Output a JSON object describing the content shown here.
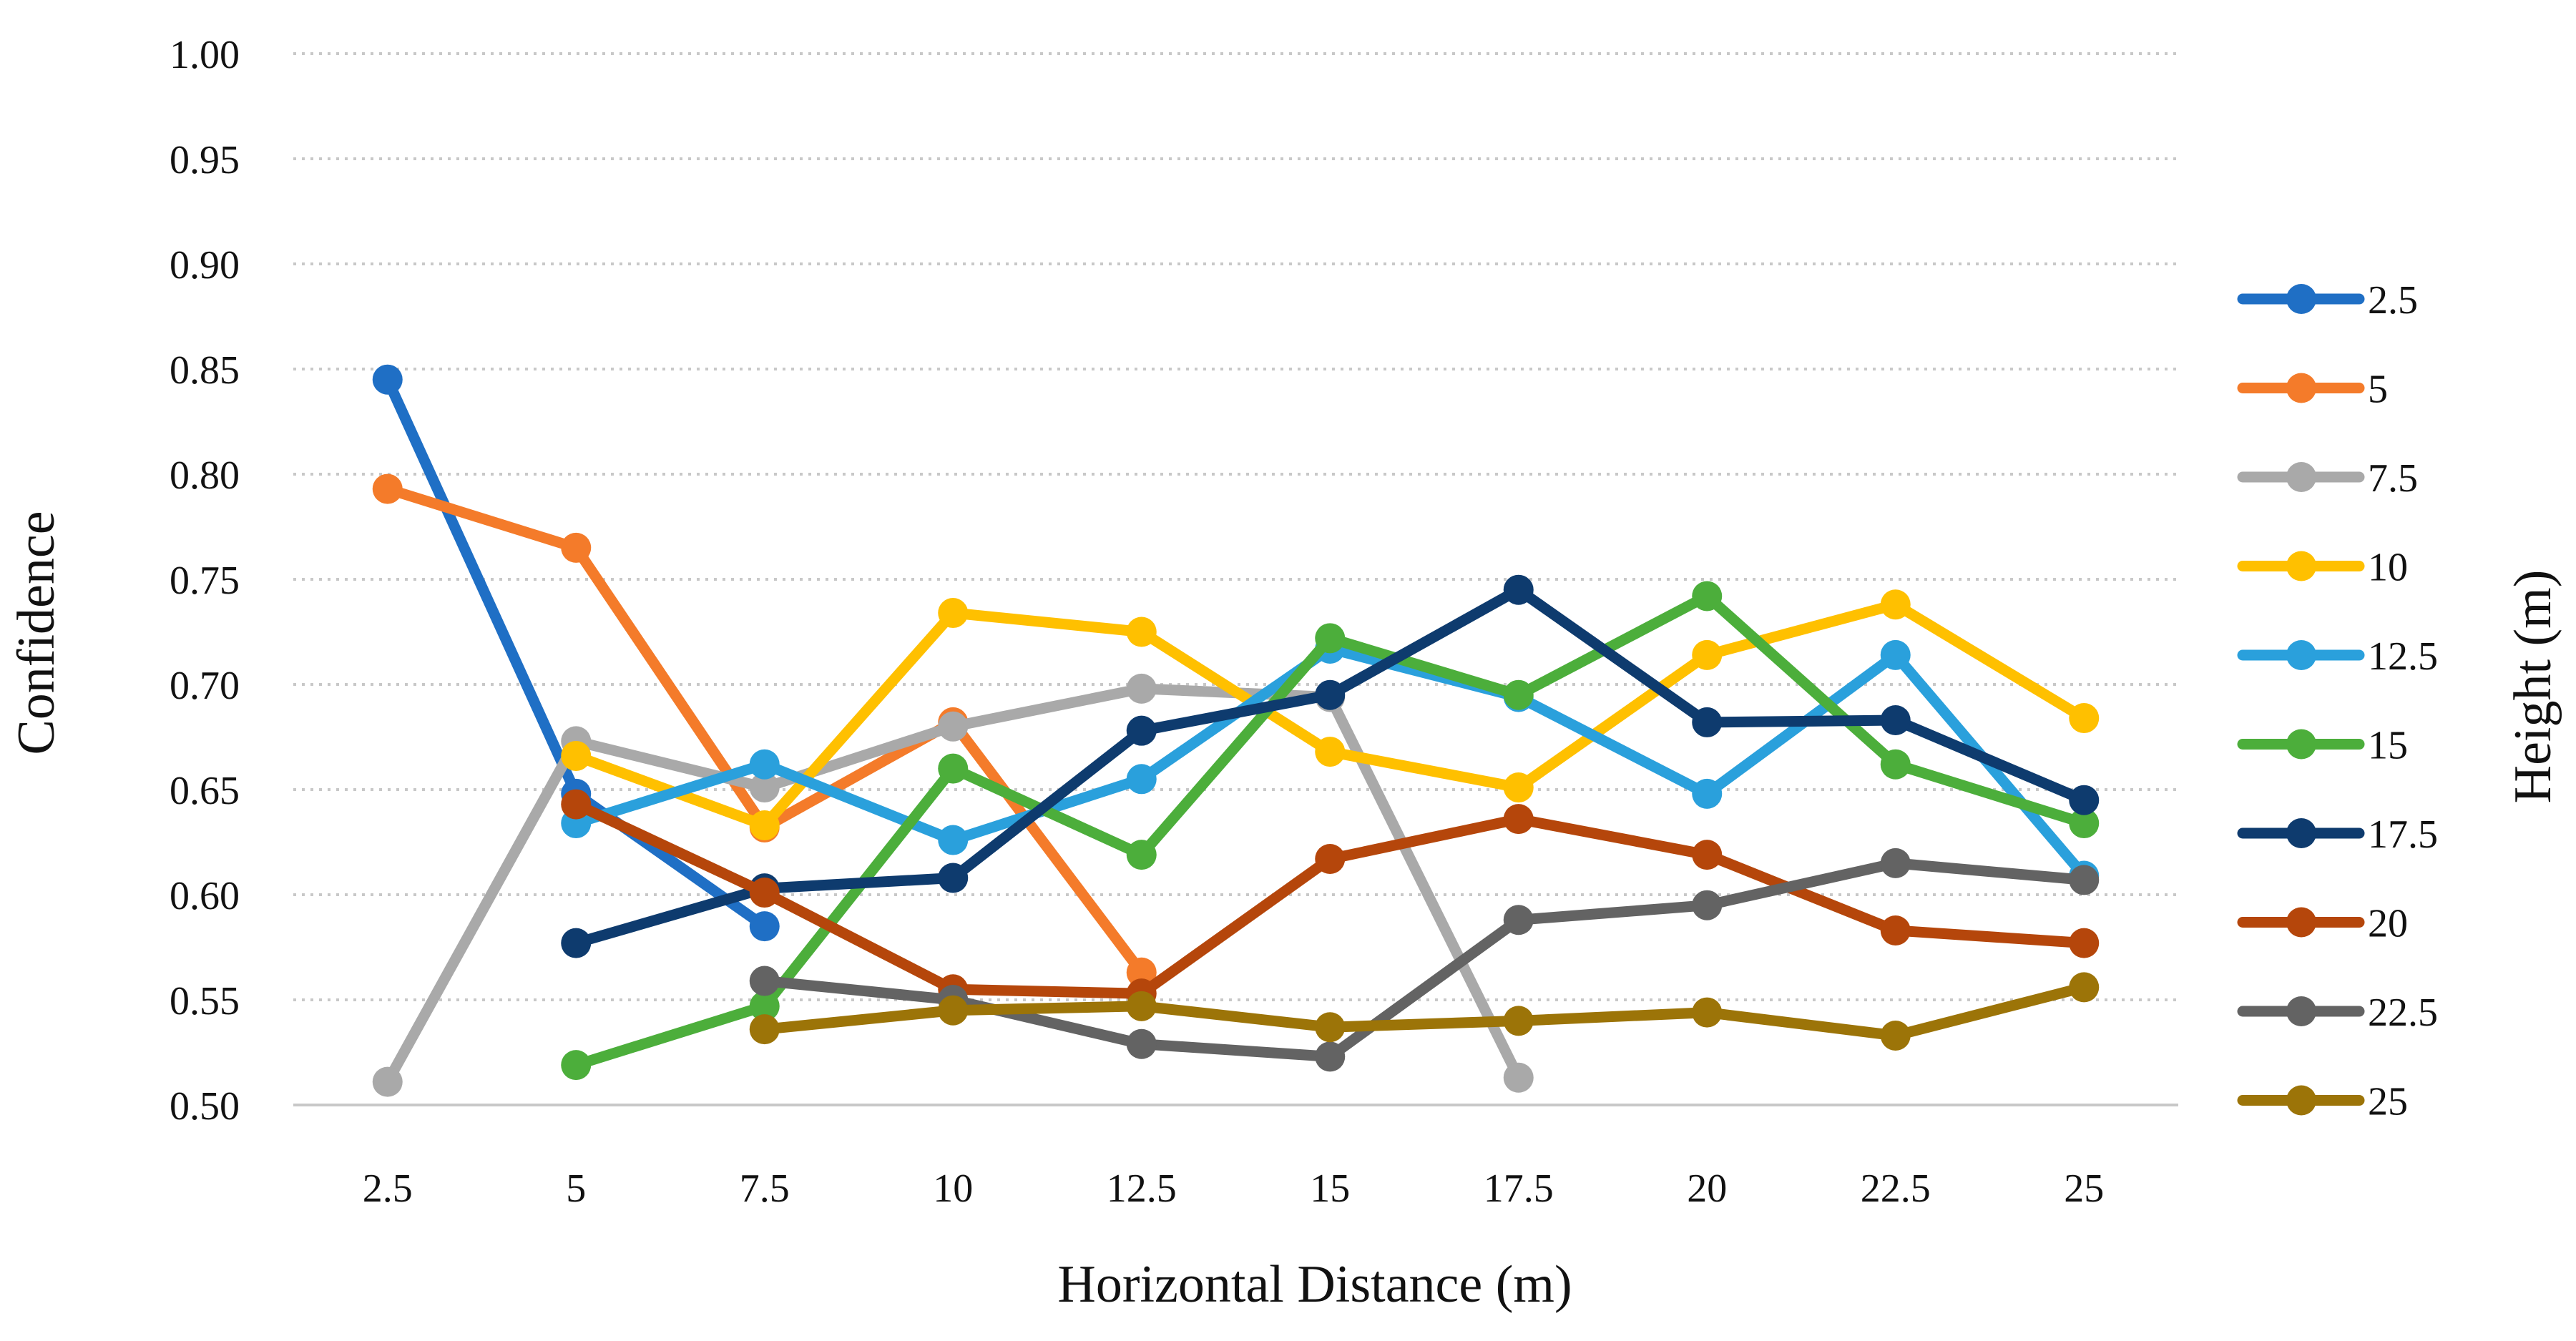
{
  "chart_data": {
    "type": "line",
    "title": "",
    "xlabel": "Horizontal Distance (m)",
    "ylabel": "Confidence",
    "legend_title": "Height (m)",
    "legend_position": "right",
    "grid": true,
    "ylim": [
      0.5,
      1.0
    ],
    "yticks": [
      "0.50",
      "0.55",
      "0.60",
      "0.65",
      "0.70",
      "0.75",
      "0.80",
      "0.85",
      "0.90",
      "0.95",
      "1.00"
    ],
    "categories": [
      "2.5",
      "5",
      "7.5",
      "10",
      "12.5",
      "15",
      "17.5",
      "20",
      "22.5",
      "25"
    ],
    "series": [
      {
        "name": "2.5",
        "color": "#1f6fc5",
        "values": [
          0.845,
          0.648,
          0.585,
          null,
          null,
          null,
          null,
          null,
          null,
          null
        ]
      },
      {
        "name": "5",
        "color": "#f47b2a",
        "values": [
          0.793,
          0.765,
          0.632,
          0.682,
          0.563,
          null,
          null,
          null,
          null,
          null
        ]
      },
      {
        "name": "7.5",
        "color": "#a9a9a9",
        "values": [
          0.511,
          0.673,
          0.651,
          0.68,
          0.698,
          0.694,
          0.513,
          null,
          null,
          null
        ]
      },
      {
        "name": "10",
        "color": "#ffc000",
        "values": [
          null,
          0.666,
          0.633,
          0.734,
          0.725,
          0.668,
          0.651,
          0.714,
          0.738,
          0.684
        ]
      },
      {
        "name": "12.5",
        "color": "#2aa0dc",
        "values": [
          null,
          0.634,
          0.662,
          0.626,
          0.655,
          0.717,
          0.694,
          0.648,
          0.714,
          0.609
        ]
      },
      {
        "name": "15",
        "color": "#4cae3b",
        "values": [
          null,
          0.519,
          0.547,
          0.66,
          0.619,
          0.722,
          0.695,
          0.742,
          0.662,
          0.634
        ]
      },
      {
        "name": "17.5",
        "color": "#0e3b6e",
        "values": [
          null,
          0.577,
          0.603,
          0.608,
          0.678,
          0.695,
          0.745,
          0.682,
          0.683,
          0.645
        ]
      },
      {
        "name": "20",
        "color": "#b5460b",
        "values": [
          null,
          0.643,
          0.601,
          0.555,
          0.553,
          0.617,
          0.636,
          0.619,
          0.583,
          0.577
        ]
      },
      {
        "name": "22.5",
        "color": "#636363",
        "values": [
          null,
          null,
          0.559,
          0.55,
          0.529,
          0.523,
          0.588,
          0.595,
          0.615,
          0.607
        ]
      },
      {
        "name": "25",
        "color": "#9c7408",
        "values": [
          null,
          null,
          0.536,
          0.545,
          0.547,
          0.537,
          0.54,
          0.544,
          0.533,
          0.556
        ]
      }
    ]
  }
}
